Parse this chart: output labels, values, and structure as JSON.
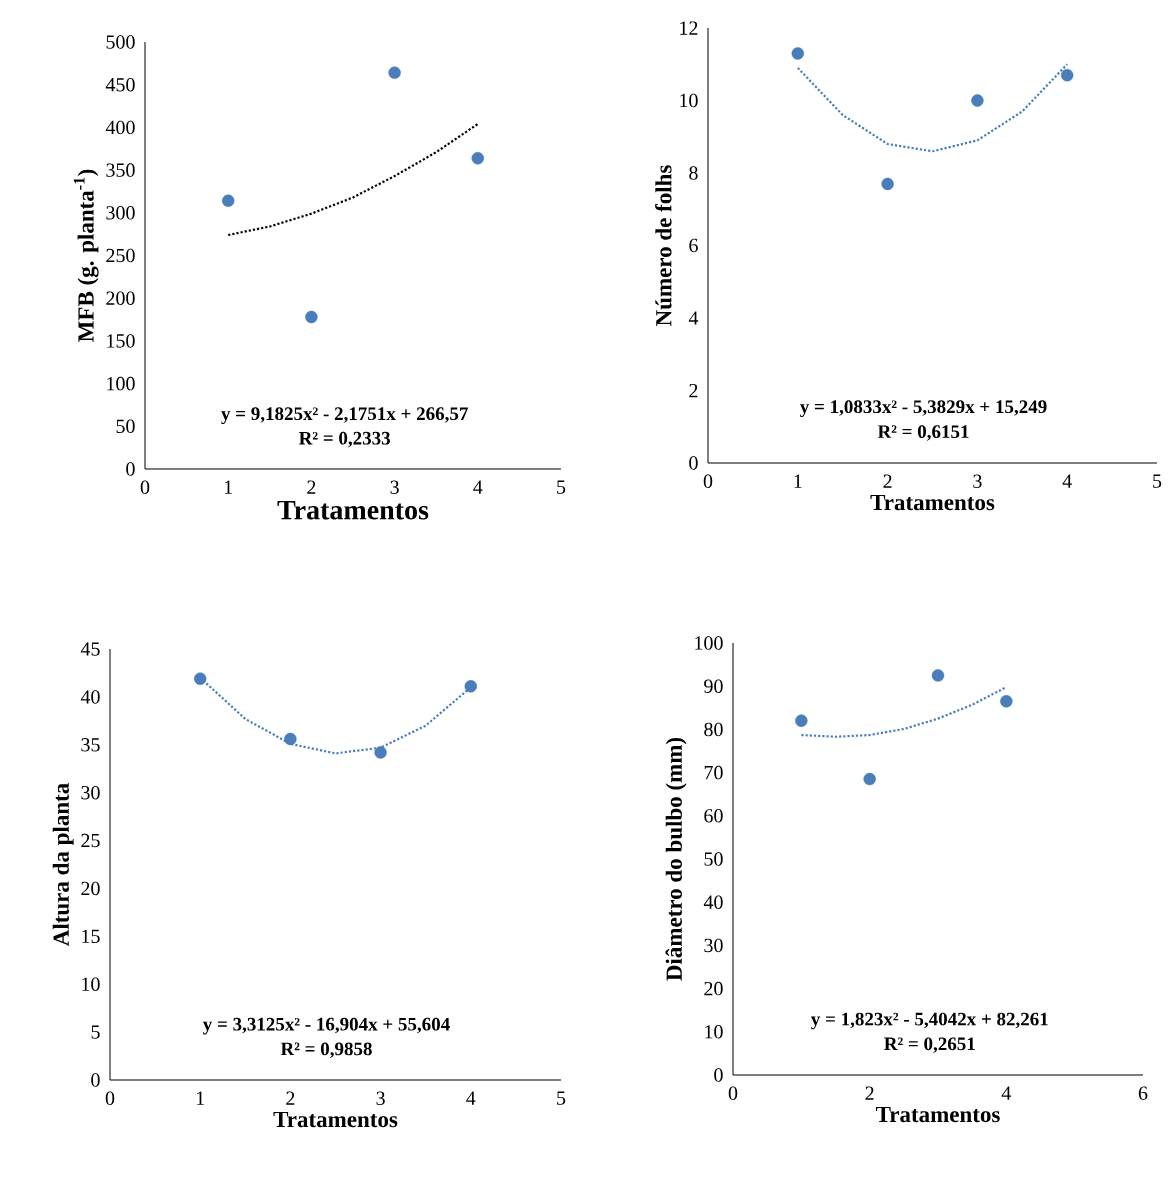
{
  "chart_data": [
    {
      "type": "scatter",
      "xlabel": "Tratamentos",
      "ylabel": "MFB (g. planta$^{-1}$)",
      "xlim": [
        0,
        5
      ],
      "xticks": [
        0,
        1,
        2,
        3,
        4,
        5
      ],
      "ylim": [
        0,
        500
      ],
      "yticks": [
        0,
        50,
        100,
        150,
        200,
        250,
        300,
        350,
        400,
        450,
        500
      ],
      "marker": "circle",
      "series": [
        {
          "color": "#4a7ebb",
          "x": [
            1,
            2,
            3,
            4
          ],
          "values": [
            314,
            178,
            464,
            364
          ]
        },
        {
          "type": "line",
          "color": "#000000",
          "marker": "none",
          "line_style": "dotted",
          "x": [
            1,
            1.5,
            2,
            2.5,
            3,
            3.5,
            4
          ],
          "values": [
            274,
            284,
            299,
            318,
            343,
            371,
            404
          ]
        }
      ],
      "annotations": [
        "y = 9,1825x² - 2,1751x + 266,57",
        "R² = 0,2333"
      ]
    },
    {
      "type": "scatter",
      "xlabel": "Tratamentos",
      "ylabel": "Número de folhs",
      "xlim": [
        0,
        5
      ],
      "xticks": [
        0,
        1,
        2,
        3,
        4,
        5
      ],
      "ylim": [
        0,
        12
      ],
      "yticks": [
        0,
        2,
        4,
        6,
        8,
        10,
        12
      ],
      "marker": "circle",
      "series": [
        {
          "color": "#4a7ebb",
          "x": [
            1,
            2,
            3,
            4
          ],
          "values": [
            11.3,
            7.7,
            10.0,
            10.7
          ]
        },
        {
          "type": "line",
          "color": "#4a7ebb",
          "marker": "none",
          "line_style": "dotted",
          "x": [
            1,
            1.5,
            2,
            2.5,
            3,
            3.5,
            4
          ],
          "values": [
            10.9,
            9.6,
            8.8,
            8.6,
            8.9,
            9.7,
            11.0
          ]
        }
      ],
      "annotations": [
        "y = 1,0833x² - 5,3829x + 15,249",
        "R² = 0,6151"
      ]
    },
    {
      "type": "scatter",
      "xlabel": "Tratamentos",
      "ylabel": "Altura da planta",
      "xlim": [
        0,
        5
      ],
      "xticks": [
        0,
        1,
        2,
        3,
        4,
        5
      ],
      "ylim": [
        0,
        45
      ],
      "yticks": [
        0,
        5,
        10,
        15,
        20,
        25,
        30,
        35,
        40,
        45
      ],
      "marker": "circle",
      "series": [
        {
          "color": "#4a7ebb",
          "x": [
            1,
            2,
            3,
            4
          ],
          "values": [
            41.9,
            35.6,
            34.2,
            41.1
          ]
        },
        {
          "type": "line",
          "color": "#4a7ebb",
          "marker": "none",
          "line_style": "dotted",
          "x": [
            1,
            1.5,
            2,
            2.5,
            3,
            3.5,
            4
          ],
          "values": [
            42.0,
            37.7,
            35.1,
            34.1,
            34.7,
            37.0,
            41.0
          ]
        }
      ],
      "annotations": [
        "y = 3,3125x² - 16,904x + 55,604",
        "R² = 0,9858"
      ]
    },
    {
      "type": "scatter",
      "xlabel": "Tratamentos",
      "ylabel": "Diâmetro do bulbo (mm)",
      "xlim": [
        0,
        6
      ],
      "xticks": [
        0,
        2,
        4,
        6
      ],
      "ylim": [
        0,
        100
      ],
      "yticks": [
        0,
        10,
        20,
        30,
        40,
        50,
        60,
        70,
        80,
        90,
        100
      ],
      "marker": "circle",
      "series": [
        {
          "color": "#4a7ebb",
          "x": [
            1,
            2,
            3,
            4
          ],
          "values": [
            82,
            68.5,
            92.5,
            86.5
          ]
        },
        {
          "type": "line",
          "color": "#4a7ebb",
          "marker": "none",
          "line_style": "dotted",
          "x": [
            1,
            1.5,
            2,
            2.5,
            3,
            3.5,
            4
          ],
          "values": [
            78.7,
            78.3,
            78.7,
            80.1,
            82.5,
            85.7,
            89.8
          ]
        }
      ],
      "annotations": [
        "y = 1,823x² - 5,4042x + 82,261",
        "R² = 0,2651"
      ]
    }
  ]
}
